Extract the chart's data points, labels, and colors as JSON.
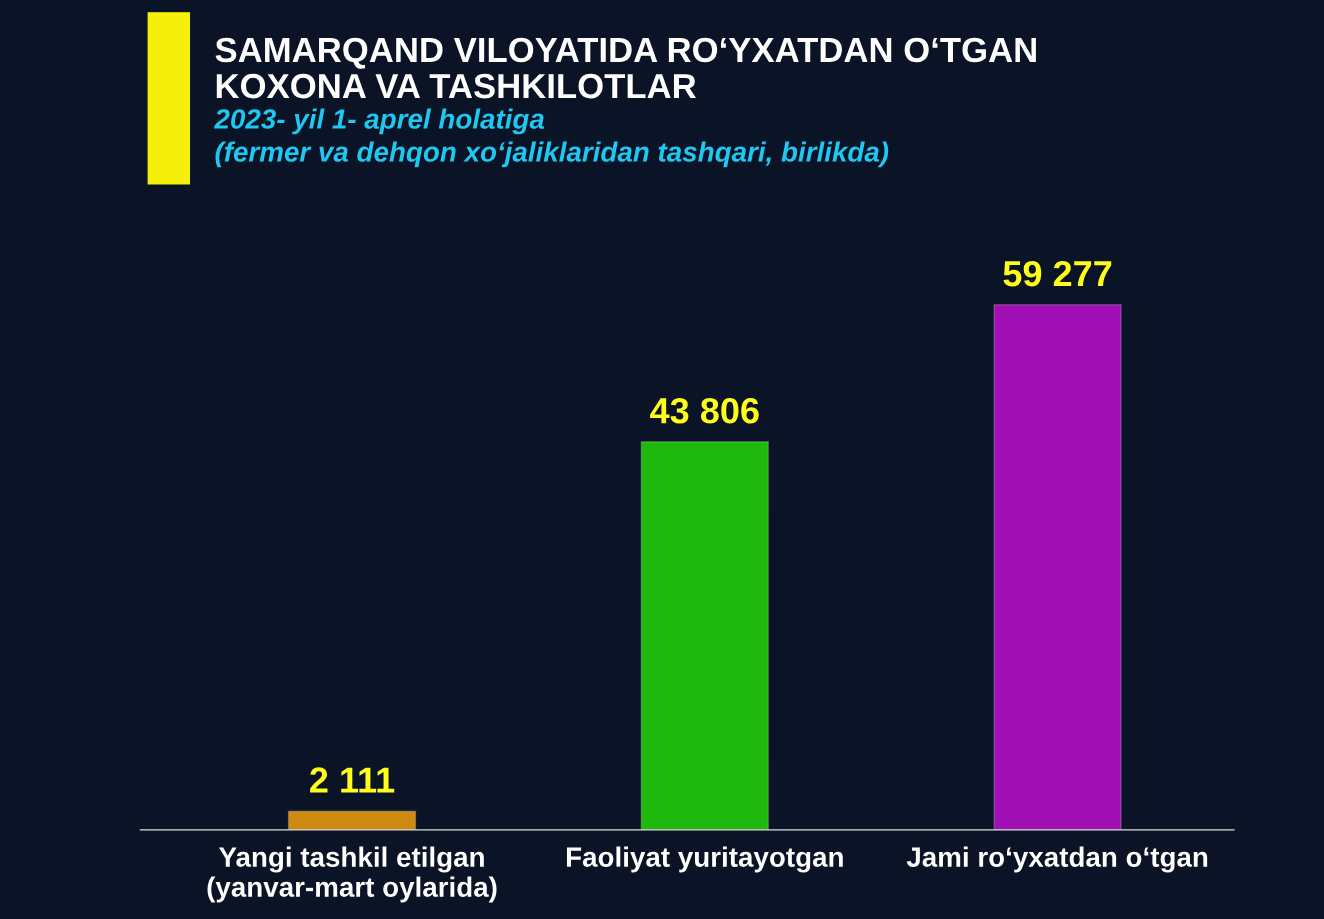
{
  "chart_data": {
    "type": "bar",
    "title": "SAMARQAND VILOYATIDA RO‘YXATDAN O‘TGAN\nKOXONA VA TASHKILOTLAR",
    "subtitle": "2023- yil 1- aprel holatiga\n(fermer va dehqon xo‘jaliklaridan tashqari, birlikda)",
    "categories": [
      "Yangi tashkil etilgan\n(yanvar-mart oylarida)",
      "Faoliyat yuritayotgan",
      "Jami ro‘yxatdan o‘tgan"
    ],
    "values": [
      2111,
      43806,
      59277
    ],
    "colors": [
      "#d08a12",
      "#1fb80c",
      "#a010b4"
    ],
    "value_labels": [
      "2 111",
      "43 806",
      "59 277"
    ],
    "tick_labels": "x",
    "grid": false,
    "legend": false
  }
}
